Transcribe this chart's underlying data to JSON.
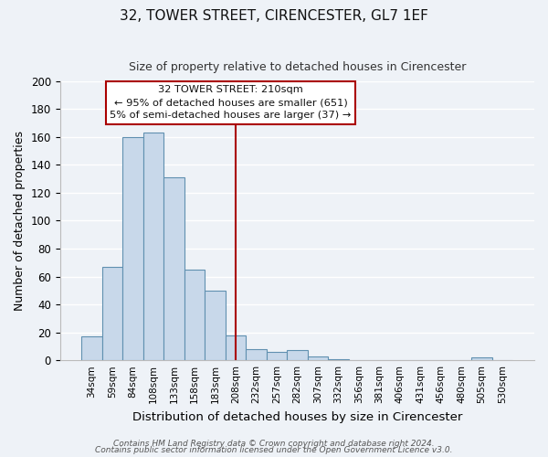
{
  "title": "32, TOWER STREET, CIRENCESTER, GL7 1EF",
  "subtitle": "Size of property relative to detached houses in Cirencester",
  "xlabel": "Distribution of detached houses by size in Cirencester",
  "ylabel": "Number of detached properties",
  "bar_color": "#c8d8ea",
  "bar_edge_color": "#6090b0",
  "categories": [
    "34sqm",
    "59sqm",
    "84sqm",
    "108sqm",
    "133sqm",
    "158sqm",
    "183sqm",
    "208sqm",
    "232sqm",
    "257sqm",
    "282sqm",
    "307sqm",
    "332sqm",
    "356sqm",
    "381sqm",
    "406sqm",
    "431sqm",
    "456sqm",
    "480sqm",
    "505sqm",
    "530sqm"
  ],
  "values": [
    17,
    67,
    160,
    163,
    131,
    65,
    50,
    18,
    8,
    6,
    7,
    3,
    1,
    0,
    0,
    0,
    0,
    0,
    0,
    2,
    0
  ],
  "ylim": [
    0,
    200
  ],
  "yticks": [
    0,
    20,
    40,
    60,
    80,
    100,
    120,
    140,
    160,
    180,
    200
  ],
  "property_line_label": "32 TOWER STREET: 210sqm",
  "annotation_line1": "← 95% of detached houses are smaller (651)",
  "annotation_line2": "5% of semi-detached houses are larger (37) →",
  "vline_color": "#aa0000",
  "vline_x_index": 7,
  "footer1": "Contains HM Land Registry data © Crown copyright and database right 2024.",
  "footer2": "Contains public sector information licensed under the Open Government Licence v3.0.",
  "background_color": "#eef2f7",
  "grid_color": "#ffffff"
}
